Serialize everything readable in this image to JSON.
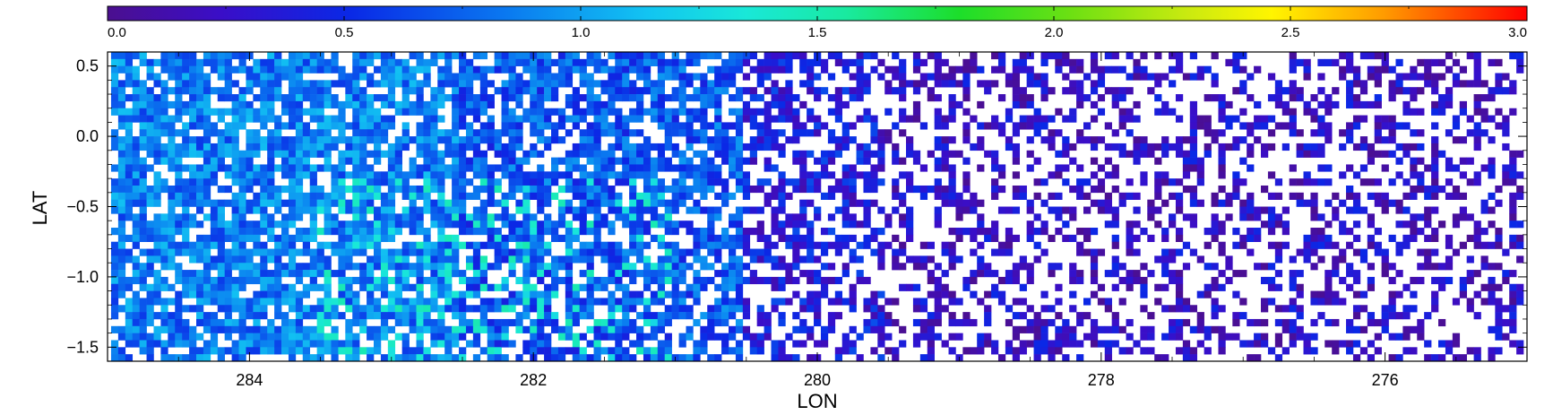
{
  "chart_data": {
    "type": "heatmap",
    "title": "",
    "xlabel": "LON",
    "ylabel": "LAT",
    "x_reversed": true,
    "xlim": [
      285.0,
      275.0
    ],
    "ylim": [
      -1.6,
      0.6
    ],
    "x_ticks": [
      284,
      282,
      280,
      278,
      276
    ],
    "x_tick_labels": [
      "284",
      "282",
      "280",
      "278",
      "276"
    ],
    "y_ticks": [
      0.5,
      0.0,
      -0.5,
      -1.0,
      -1.5
    ],
    "y_tick_labels": [
      "0.5",
      "0.0",
      "−0.5",
      "−1.0",
      "−1.5"
    ],
    "grid": false,
    "colorbar": {
      "location": "top",
      "colormap": "rainbow",
      "range": [
        0.0,
        3.0
      ],
      "ticks": [
        0.0,
        0.5,
        1.0,
        1.5,
        2.0,
        2.5,
        3.0
      ],
      "tick_labels": [
        "0.0",
        "0.5",
        "1.0",
        "1.5",
        "2.0",
        "2.5",
        "3.0"
      ]
    },
    "cell_size_deg": [
      0.05,
      0.05
    ],
    "value_field_description": [
      {
        "lon_range": [
          285.0,
          282.5
        ],
        "typical_value": 0.85
      },
      {
        "lon_range": [
          282.5,
          280.5
        ],
        "typical_value": 0.7
      },
      {
        "lon_range": [
          280.5,
          279.5
        ],
        "typical_value": 0.4
      },
      {
        "lon_range": [
          279.5,
          275.0
        ],
        "typical_value": 0.25
      }
    ]
  }
}
